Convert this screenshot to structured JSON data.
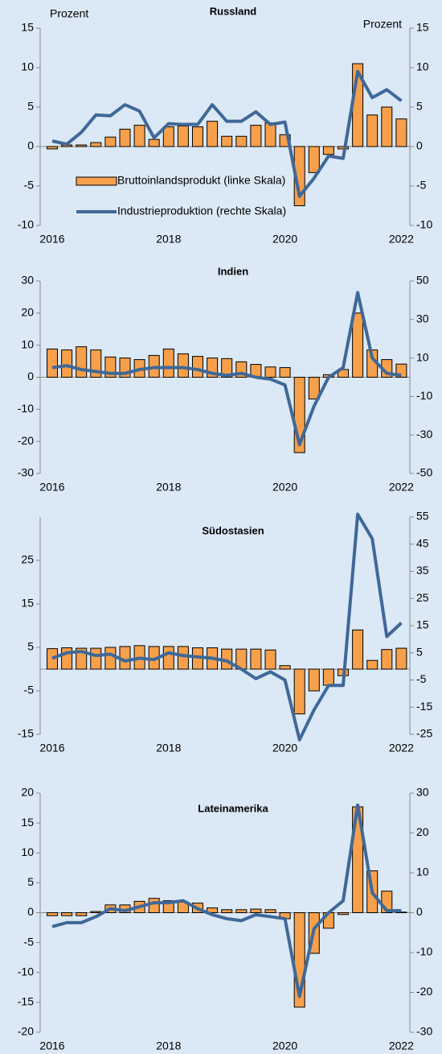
{
  "chart_data": [
    {
      "type": "combo",
      "title": "Russland",
      "ylabel": "Prozent",
      "y2label": "Prozent",
      "legend": "lower left",
      "categories": [
        "2016",
        null,
        null,
        null,
        null,
        null,
        null,
        null,
        "2018",
        null,
        null,
        null,
        null,
        null,
        null,
        null,
        "2020",
        null,
        null,
        null,
        null,
        null,
        null,
        null,
        "2022"
      ],
      "series": [
        {
          "name": "Bruttoinlandsprodukt (linke Skala)",
          "type": "bar",
          "color": "#f7a04b",
          "values": [
            -0.3,
            0.2,
            0.2,
            0.5,
            1.2,
            2.2,
            2.7,
            0.9,
            2.5,
            2.6,
            2.5,
            3.2,
            1.3,
            1.3,
            2.7,
            3.0,
            1.5,
            -7.5,
            -3.3,
            -1.0,
            -0.3,
            10.5,
            4.0,
            5.0,
            3.5
          ]
        },
        {
          "name": "Industrieproduktion (rechte Skala)",
          "type": "line",
          "axis": "y2",
          "color": "#3f6898",
          "values": [
            0.7,
            0.3,
            1.8,
            4.0,
            3.9,
            5.3,
            4.5,
            1.1,
            2.9,
            2.8,
            2.8,
            5.3,
            3.2,
            3.2,
            4.4,
            2.8,
            3.1,
            -6.3,
            -4.0,
            -1.2,
            -1.5,
            9.5,
            6.2,
            7.2,
            5.8
          ]
        }
      ],
      "ylim": [
        -10,
        15
      ],
      "yticks": [
        -10,
        -5,
        0,
        5,
        10,
        15
      ],
      "y2lim": [
        -10,
        15
      ],
      "y2ticks": [
        -10,
        -5,
        0,
        5,
        10,
        15
      ]
    },
    {
      "type": "combo",
      "title": "Indien",
      "categories": [
        "2016",
        null,
        null,
        null,
        null,
        null,
        null,
        null,
        "2018",
        null,
        null,
        null,
        null,
        null,
        null,
        null,
        "2020",
        null,
        null,
        null,
        null,
        null,
        null,
        null,
        "2022"
      ],
      "series": [
        {
          "type": "bar",
          "color": "#f7a04b",
          "values": [
            8.8,
            8.5,
            9.5,
            8.5,
            6.3,
            6.0,
            5.5,
            6.8,
            8.8,
            7.3,
            6.5,
            6.0,
            5.8,
            4.8,
            4.0,
            3.2,
            3.0,
            -23.5,
            -6.8,
            0.8,
            2.4,
            20.0,
            8.5,
            5.5,
            4.1
          ]
        },
        {
          "type": "line",
          "axis": "y2",
          "color": "#3f6898",
          "values": [
            5,
            6,
            4,
            3,
            2,
            2,
            4,
            5,
            5,
            5,
            4,
            2,
            1,
            2,
            0,
            -1,
            -4,
            -35,
            -15,
            0,
            5,
            44,
            10,
            2,
            1
          ]
        }
      ],
      "ylim": [
        -30,
        30
      ],
      "yticks": [
        -30,
        -20,
        -10,
        0,
        10,
        20,
        30
      ],
      "y2lim": [
        -50,
        50
      ],
      "y2ticks": [
        -50,
        -30,
        -10,
        10,
        30,
        50
      ]
    },
    {
      "type": "combo",
      "title": "Südostasien",
      "categories": [
        "2016",
        null,
        null,
        null,
        null,
        null,
        null,
        null,
        "2018",
        null,
        null,
        null,
        null,
        null,
        null,
        null,
        "2020",
        null,
        null,
        null,
        null,
        null,
        null,
        null,
        "2022"
      ],
      "series": [
        {
          "type": "bar",
          "color": "#f7a04b",
          "values": [
            4.7,
            4.9,
            4.8,
            4.8,
            5.0,
            5.2,
            5.4,
            5.2,
            5.2,
            5.2,
            4.9,
            4.9,
            4.6,
            4.6,
            4.6,
            4.4,
            0.8,
            -10.3,
            -5.0,
            -3.7,
            -1.5,
            9.0,
            2.0,
            4.5,
            4.8
          ]
        },
        {
          "type": "line",
          "axis": "y2",
          "color": "#3f6898",
          "values": [
            3,
            5,
            5.5,
            4,
            4.5,
            2,
            3,
            2.5,
            5,
            4,
            3.5,
            3,
            2,
            -1,
            -4.5,
            -2,
            -5,
            -27,
            -16,
            -7,
            -7,
            56,
            47,
            11,
            16
          ]
        }
      ],
      "ylim": [
        -15,
        35
      ],
      "yticks": [
        -15,
        -5,
        5,
        15,
        25
      ],
      "y2lim": [
        -25,
        55
      ],
      "y2ticks": [
        -25,
        -15,
        -5,
        5,
        15,
        25,
        35,
        45,
        55
      ]
    },
    {
      "type": "combo",
      "title": "Lateinamerika",
      "categories": [
        "2016",
        null,
        null,
        null,
        null,
        null,
        null,
        null,
        "2018",
        null,
        null,
        null,
        null,
        null,
        null,
        null,
        "2020",
        null,
        null,
        null,
        null,
        null,
        null,
        null,
        "2022"
      ],
      "series": [
        {
          "type": "bar",
          "color": "#f7a04b",
          "values": [
            -0.5,
            -0.5,
            -0.5,
            0.2,
            1.3,
            1.3,
            1.9,
            2.4,
            2.0,
            1.8,
            1.6,
            0.8,
            0.5,
            0.5,
            0.6,
            0.5,
            -1.0,
            -15.8,
            -6.8,
            -2.6,
            -0.3,
            17.7,
            7.0,
            3.6,
            0.1
          ]
        },
        {
          "type": "line",
          "axis": "y2",
          "color": "#3f6898",
          "values": [
            -3.5,
            -2.5,
            -2.5,
            -1,
            1,
            0.5,
            1.5,
            2.5,
            2.5,
            3,
            1,
            -0.5,
            -1.5,
            -2,
            -0.5,
            -1,
            -1.5,
            -21,
            -4,
            0,
            3,
            27,
            5,
            0.5,
            0.5
          ]
        }
      ],
      "ylim": [
        -20,
        20
      ],
      "yticks": [
        -20,
        -15,
        -10,
        -5,
        0,
        5,
        10,
        15,
        20
      ],
      "y2lim": [
        -30,
        30
      ],
      "y2ticks": [
        -30,
        -20,
        -10,
        0,
        10,
        20,
        30
      ]
    }
  ]
}
